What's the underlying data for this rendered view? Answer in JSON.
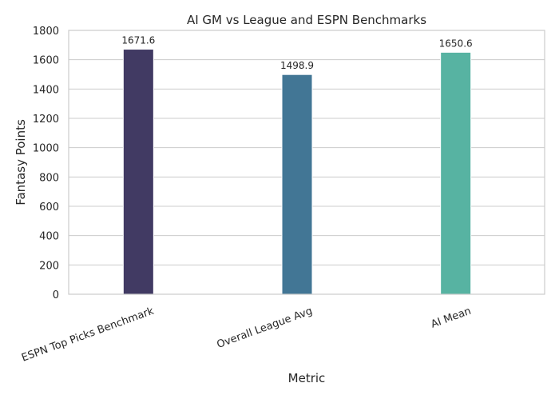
{
  "chart_data": {
    "type": "bar",
    "title": "AI GM vs League and ESPN Benchmarks",
    "xlabel": "Metric",
    "ylabel": "Fantasy Points",
    "categories": [
      "ESPN Top Picks Benchmark",
      "Overall League Avg",
      "AI Mean"
    ],
    "values": [
      1671.6,
      1498.9,
      1650.6
    ],
    "data_labels": [
      "1671.6",
      "1498.9",
      "1650.6"
    ],
    "colors": [
      "#413a63",
      "#427695",
      "#57b3a2"
    ],
    "ylim": [
      0,
      1800
    ],
    "yticks": [
      0,
      200,
      400,
      600,
      800,
      1000,
      1200,
      1400,
      1600,
      1800
    ],
    "ytick_labels": [
      "0",
      "200",
      "400",
      "600",
      "800",
      "1000",
      "1200",
      "1400",
      "1600",
      "1800"
    ],
    "grid": "horizontal",
    "xtick_rotation": "rotated"
  }
}
